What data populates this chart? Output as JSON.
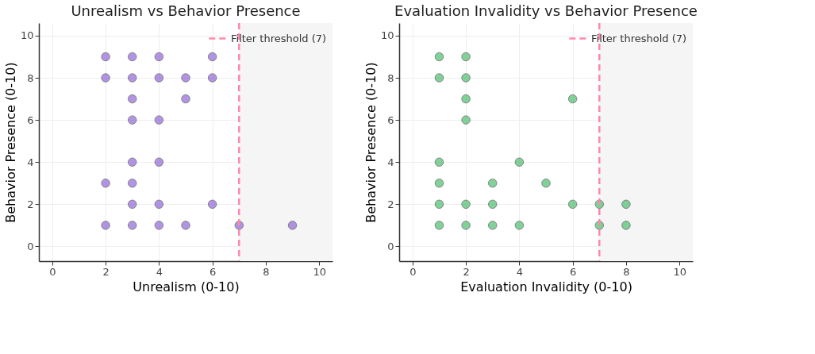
{
  "chart_data": [
    {
      "type": "scatter",
      "title": "Unrealism vs Behavior Presence",
      "xlabel": "Unrealism (0-10)",
      "ylabel": "Behavior Presence (0-10)",
      "x": [
        2,
        3,
        4,
        6,
        2,
        3,
        4,
        5,
        6,
        3,
        5,
        3,
        4,
        3,
        4,
        2,
        3,
        3,
        4,
        6,
        2,
        3,
        4,
        5,
        7,
        9
      ],
      "series": [
        {
          "color": "#8a5cd6",
          "values": [
            9,
            9,
            9,
            9,
            8,
            8,
            8,
            8,
            8,
            7,
            7,
            6,
            6,
            4,
            4,
            3,
            3,
            2,
            2,
            2,
            1,
            1,
            1,
            1,
            1,
            1
          ]
        }
      ],
      "xlim": [
        -0.5,
        10.5
      ],
      "ylim": [
        -0.7,
        10.6
      ],
      "xticks": [
        0,
        2,
        4,
        6,
        8,
        10
      ],
      "yticks": [
        0,
        2,
        4,
        6,
        8,
        10
      ],
      "ref_lines": [
        {
          "axis": "x",
          "value": 7,
          "label": "Filter threshold (7)",
          "color": "#ff88aa",
          "line_style": "dashed"
        }
      ],
      "bands": [
        {
          "axis": "x",
          "from": 7,
          "to": 10.5,
          "color": "#f5f5f5"
        }
      ],
      "grid": true,
      "legend": "top right",
      "marker": "circle"
    },
    {
      "type": "scatter",
      "title": "Evaluation Invalidity vs Behavior Presence",
      "xlabel": "Evaluation Invalidity (0-10)",
      "ylabel": "Behavior Presence (0-10)",
      "x": [
        1,
        2,
        1,
        2,
        2,
        6,
        2,
        1,
        4,
        1,
        3,
        5,
        1,
        2,
        3,
        6,
        7,
        8,
        1,
        2,
        3,
        4,
        7,
        8
      ],
      "series": [
        {
          "color": "#3dbb63",
          "values": [
            9,
            9,
            8,
            8,
            7,
            7,
            6,
            4,
            4,
            3,
            3,
            3,
            2,
            2,
            2,
            2,
            2,
            2,
            1,
            1,
            1,
            1,
            1,
            1
          ]
        }
      ],
      "xlim": [
        -0.5,
        10.5
      ],
      "ylim": [
        -0.7,
        10.6
      ],
      "xticks": [
        0,
        2,
        4,
        6,
        8,
        10
      ],
      "yticks": [
        0,
        2,
        4,
        6,
        8,
        10
      ],
      "ref_lines": [
        {
          "axis": "x",
          "value": 7,
          "label": "Filter threshold (7)",
          "color": "#ff88aa",
          "line_style": "dashed"
        }
      ],
      "bands": [
        {
          "axis": "x",
          "from": 7,
          "to": 10.5,
          "color": "#f5f5f5"
        }
      ],
      "grid": true,
      "legend": "top right",
      "marker": "circle"
    }
  ]
}
